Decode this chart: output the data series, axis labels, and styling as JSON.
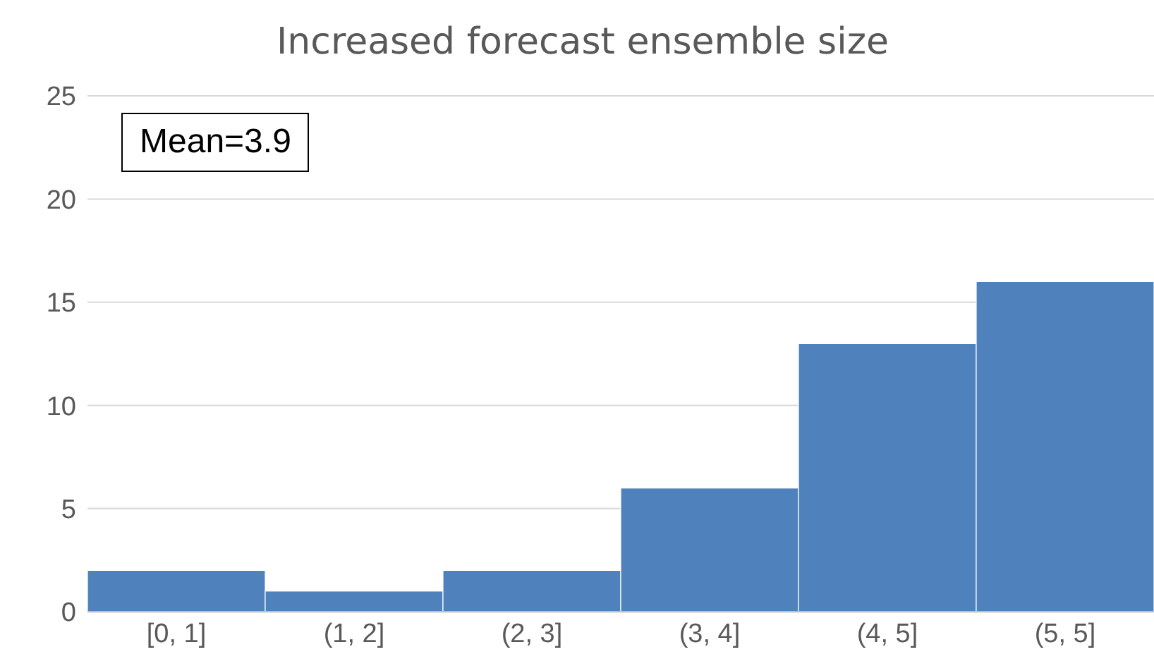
{
  "chart_data": {
    "type": "bar",
    "title": "Increased forecast ensemble size",
    "categories": [
      "[0, 1]",
      "(1, 2]",
      "(2, 3]",
      "(3, 4]",
      "(4, 5]",
      "(5, 5]"
    ],
    "values": [
      2,
      1,
      2,
      6,
      13,
      16
    ],
    "color": "#4f81bd",
    "ylim": [
      0,
      25
    ],
    "yticks": [
      0,
      5,
      10,
      15,
      20,
      25
    ],
    "grid": "y",
    "annotations": [
      "Mean=3.9"
    ]
  }
}
